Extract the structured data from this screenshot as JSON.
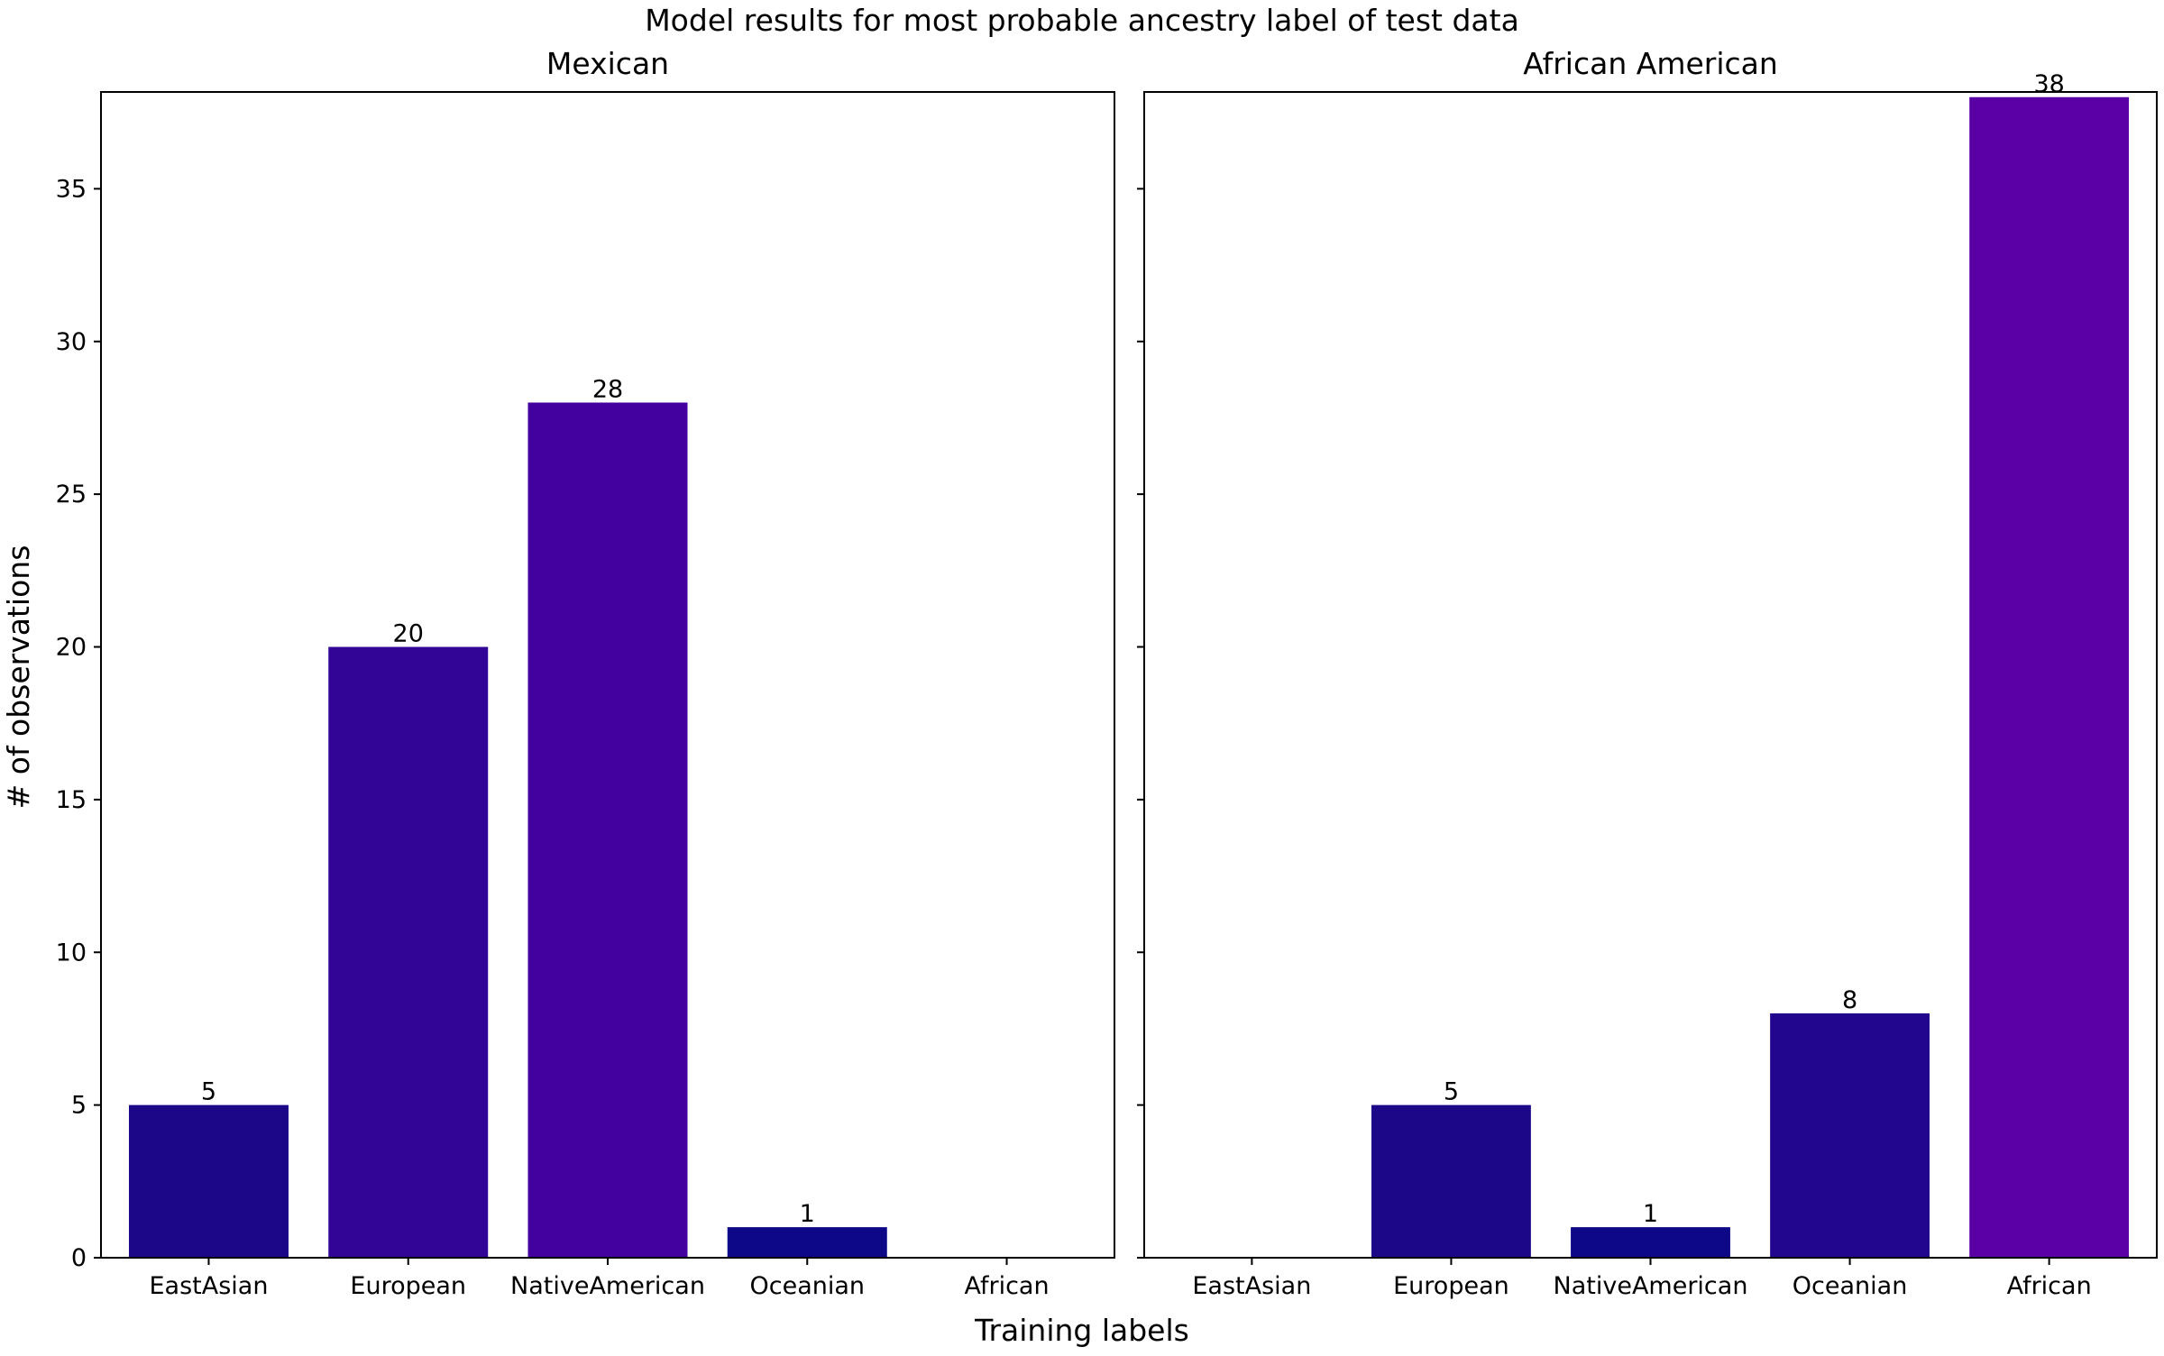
{
  "chart_data": {
    "type": "bar",
    "title": "Model results for most probable ancestry label of test data",
    "xlabel": "Training labels",
    "ylabel": "# of observations",
    "ylim": [
      0,
      40
    ],
    "yticks": [
      0,
      5,
      10,
      15,
      20,
      25,
      30,
      35
    ],
    "sharey": true,
    "grid": false,
    "panels": [
      {
        "title": "Mexican",
        "categories": [
          "EastAsian",
          "European",
          "NativeAmerican",
          "Oceanian",
          "African"
        ],
        "values": [
          5,
          20,
          28,
          1,
          0
        ],
        "data_labels": [
          "5",
          "20",
          "28",
          "1",
          ""
        ],
        "colors": [
          "#1b0788",
          "#330597",
          "#4302a0",
          "#0d0887",
          "#0d0887"
        ]
      },
      {
        "title": "African American",
        "categories": [
          "EastAsian",
          "European",
          "NativeAmerican",
          "Oceanian",
          "African"
        ],
        "values": [
          0,
          5,
          1,
          8,
          38
        ],
        "data_labels": [
          "",
          "5",
          "1",
          "8",
          "38"
        ],
        "colors": [
          "#0d0887",
          "#1b0788",
          "#0d0887",
          "#23068e",
          "#5901a5"
        ]
      }
    ]
  }
}
